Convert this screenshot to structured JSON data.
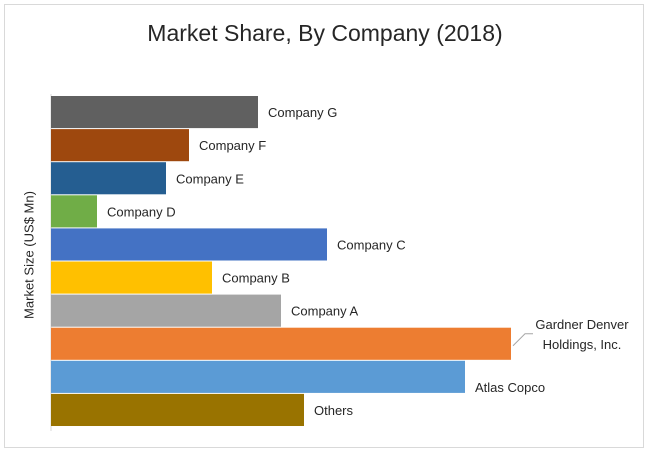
{
  "chart_data": {
    "type": "bar",
    "orientation": "horizontal",
    "title": "Market Share, By Company (2018)",
    "ylabel": "Market Size (US$ Mn)",
    "xlabel": "",
    "grid": false,
    "legend": "none",
    "xlim": [
      0,
      100
    ],
    "categories": [
      "Company G",
      "Company F",
      "Company E",
      "Company D",
      "Company C",
      "Company B",
      "Company A",
      "Gardner Denver Holdings, Inc.",
      "Atlas Copco",
      "Others"
    ],
    "values": [
      45,
      30,
      25,
      10,
      60,
      35,
      50,
      100,
      90,
      55
    ],
    "colors": [
      "#606060",
      "#9e480e",
      "#255e91",
      "#70ad47",
      "#4472c4",
      "#ffc000",
      "#a5a5a5",
      "#ed7d31",
      "#5b9bd5",
      "#997300"
    ]
  }
}
